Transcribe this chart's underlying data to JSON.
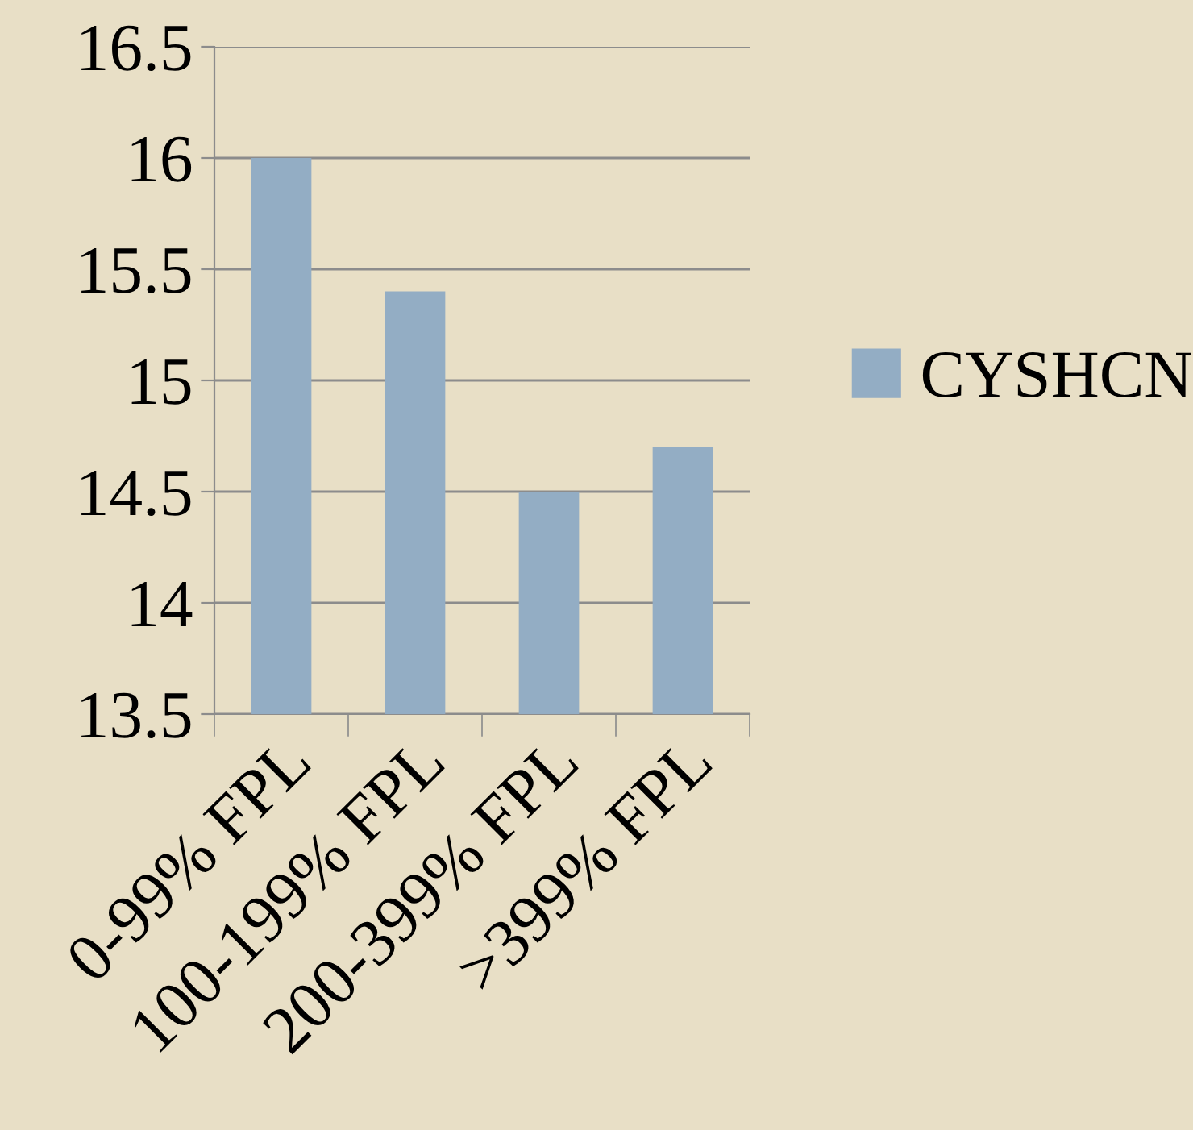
{
  "chart_data": {
    "type": "bar",
    "categories": [
      "0-99% FPL",
      "100-199% FPL",
      "200-399% FPL",
      ">399% FPL"
    ],
    "series": [
      {
        "name": "CYSHCN",
        "color": "#93adc4",
        "values": [
          16.0,
          15.4,
          14.5,
          14.7
        ]
      }
    ],
    "ylim": [
      13.5,
      16.5
    ],
    "yticks": [
      13.5,
      14,
      14.5,
      15,
      15.5,
      16,
      16.5
    ],
    "grid": "y",
    "legend": "right"
  }
}
